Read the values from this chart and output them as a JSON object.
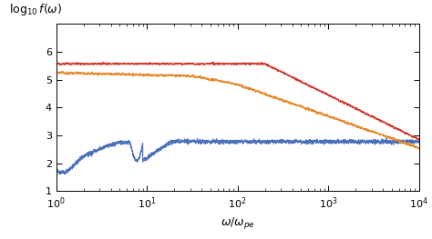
{
  "xlabel": "$\\omega/\\omega_{pe}$",
  "ylabel": "$\\log_{10}f(\\omega)$",
  "xlim": [
    1,
    10000
  ],
  "ylim": [
    1,
    7
  ],
  "yticks": [
    1,
    2,
    3,
    4,
    5,
    6
  ],
  "colors": {
    "red": "#d43a2f",
    "orange": "#e8872a",
    "blue": "#4a6fbb"
  },
  "line_width": 0.85,
  "background": "#ffffff",
  "noise_red": 0.03,
  "noise_orange": 0.035,
  "noise_blue": 0.05
}
